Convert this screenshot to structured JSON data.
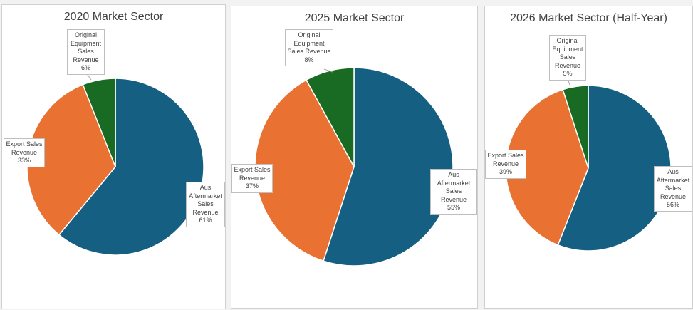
{
  "chart_data": [
    {
      "type": "pie",
      "title": "2020 Market Sector",
      "slices": [
        {
          "label": "Aus Aftermarket Sales Revenue",
          "value": 61,
          "pct_label": "61%",
          "color": "#156082"
        },
        {
          "label": "Export Sales Revenue",
          "value": 33,
          "pct_label": "33%",
          "color": "#e97132"
        },
        {
          "label": "Original Equipment Sales Revenue",
          "value": 6,
          "pct_label": "6%",
          "color": "#196b24"
        }
      ]
    },
    {
      "type": "pie",
      "title": "2025 Market Sector",
      "slices": [
        {
          "label": "Aus Aftermarket Sales Revenue",
          "value": 55,
          "pct_label": "55%",
          "color": "#156082"
        },
        {
          "label": "Export Sales Revenue",
          "value": 37,
          "pct_label": "37%",
          "color": "#e97132"
        },
        {
          "label": "Original Equipment Sales Revenue",
          "value": 8,
          "pct_label": "8%",
          "color": "#196b24"
        }
      ]
    },
    {
      "type": "pie",
      "title": "2026 Market Sector (Half-Year)",
      "slices": [
        {
          "label": "Aus Aftermarket Sales Revenue",
          "value": 56,
          "pct_label": "56%",
          "color": "#156082"
        },
        {
          "label": "Export Sales Revenue",
          "value": 39,
          "pct_label": "39%",
          "color": "#e97132"
        },
        {
          "label": "Original Equipment Sales Revenue",
          "value": 5,
          "pct_label": "5%",
          "color": "#196b24"
        }
      ]
    }
  ]
}
